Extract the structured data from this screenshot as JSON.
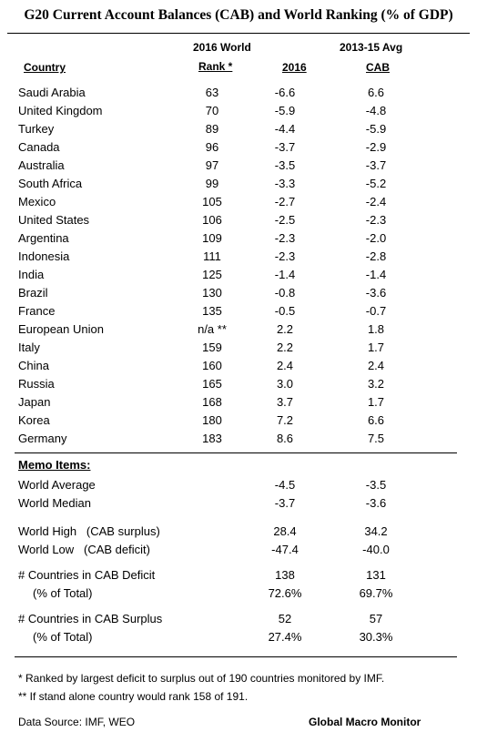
{
  "title": "G20 Current Account Balances (CAB) and World Ranking (% of GDP)",
  "header": {
    "country": "Country",
    "rank_line1": "2016 World",
    "rank_line2": "Rank *",
    "year": "2016",
    "avg_line1": "2013-15 Avg",
    "avg_line2": "CAB"
  },
  "rows": [
    {
      "country": "Saudi Arabia",
      "rank": "63",
      "v2016": "-6.6",
      "avg": "6.6"
    },
    {
      "country": "United Kingdom",
      "rank": "70",
      "v2016": "-5.9",
      "avg": "-4.8"
    },
    {
      "country": "Turkey",
      "rank": "89",
      "v2016": "-4.4",
      "avg": "-5.9"
    },
    {
      "country": "Canada",
      "rank": "96",
      "v2016": "-3.7",
      "avg": "-2.9"
    },
    {
      "country": "Australia",
      "rank": "97",
      "v2016": "-3.5",
      "avg": "-3.7"
    },
    {
      "country": "South Africa",
      "rank": "99",
      "v2016": "-3.3",
      "avg": "-5.2"
    },
    {
      "country": "Mexico",
      "rank": "105",
      "v2016": "-2.7",
      "avg": "-2.4"
    },
    {
      "country": "United States",
      "rank": "106",
      "v2016": "-2.5",
      "avg": "-2.3"
    },
    {
      "country": "Argentina",
      "rank": "109",
      "v2016": "-2.3",
      "avg": "-2.0"
    },
    {
      "country": "Indonesia",
      "rank": "111",
      "v2016": "-2.3",
      "avg": "-2.8"
    },
    {
      "country": "India",
      "rank": "125",
      "v2016": "-1.4",
      "avg": "-1.4"
    },
    {
      "country": "Brazil",
      "rank": "130",
      "v2016": "-0.8",
      "avg": "-3.6"
    },
    {
      "country": "France",
      "rank": "135",
      "v2016": "-0.5",
      "avg": "-0.7"
    },
    {
      "country": "European Union",
      "rank": "n/a **",
      "v2016": "2.2",
      "avg": "1.8"
    },
    {
      "country": "Italy",
      "rank": "159",
      "v2016": "2.2",
      "avg": "1.7"
    },
    {
      "country": "China",
      "rank": "160",
      "v2016": "2.4",
      "avg": "2.4"
    },
    {
      "country": "Russia",
      "rank": "165",
      "v2016": "3.0",
      "avg": "3.2"
    },
    {
      "country": "Japan",
      "rank": "168",
      "v2016": "3.7",
      "avg": "1.7"
    },
    {
      "country": "Korea",
      "rank": "180",
      "v2016": "7.2",
      "avg": "6.6"
    },
    {
      "country": "Germany",
      "rank": "183",
      "v2016": "8.6",
      "avg": "7.5"
    }
  ],
  "memo": {
    "heading": "Memo Items:",
    "items": [
      {
        "label": "World Average",
        "v2016": "-4.5",
        "avg": "-3.5"
      },
      {
        "label": "World Median",
        "v2016": "-3.7",
        "avg": "-3.6"
      },
      {
        "label": "World High   (CAB surplus)",
        "v2016": "28.4",
        "avg": "34.2"
      },
      {
        "label": "World Low   (CAB deficit)",
        "v2016": "-47.4",
        "avg": "-40.0"
      },
      {
        "label": "# Countries in CAB Deficit",
        "v2016": "138",
        "avg": "131"
      },
      {
        "label": "(% of Total)",
        "v2016": "72.6%",
        "avg": "69.7%"
      },
      {
        "label": "# Countries in CAB Surplus",
        "v2016": "52",
        "avg": "57"
      },
      {
        "label": "(% of Total)",
        "v2016": "27.4%",
        "avg": "30.3%"
      }
    ]
  },
  "footnotes": {
    "note1": "* Ranked by largest deficit to surplus out of 190 countries monitored by IMF.",
    "note2": "**  If stand alone country would rank 158 of 191.",
    "source": "Data Source:  IMF, WEO",
    "brand": "Global Macro Monitor"
  }
}
